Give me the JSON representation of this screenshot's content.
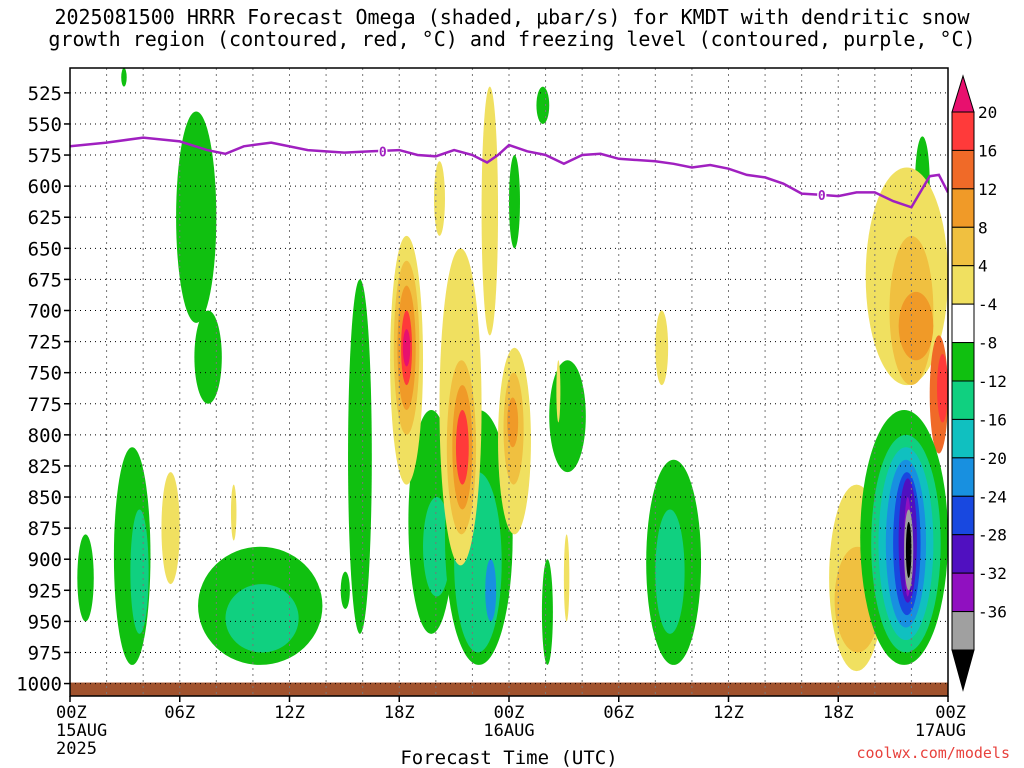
{
  "title": {
    "line1": "2025081500 HRRR Forecast Omega (shaded, μbar/s) for KMDT with dendritic snow",
    "line2": "growth region (contoured, red, °C) and freezing level (contoured, purple, °C)"
  },
  "credit": "coolwx.com/models",
  "chart_data": {
    "type": "heatmap",
    "xlabel": "Forecast Time (UTC)",
    "ylabel": "",
    "y_ticks": [
      525,
      550,
      575,
      600,
      625,
      650,
      675,
      700,
      725,
      750,
      775,
      800,
      825,
      850,
      875,
      900,
      925,
      950,
      975,
      1000
    ],
    "ylim": [
      1010,
      505
    ],
    "xlim": [
      0,
      48
    ],
    "x_ticks": [
      {
        "h": 0,
        "label": "00Z",
        "sub": "15AUG",
        "sub2": "2025"
      },
      {
        "h": 6,
        "label": "06Z",
        "sub": "",
        "sub2": ""
      },
      {
        "h": 12,
        "label": "12Z",
        "sub": "",
        "sub2": ""
      },
      {
        "h": 18,
        "label": "18Z",
        "sub": "",
        "sub2": ""
      },
      {
        "h": 24,
        "label": "00Z",
        "sub": "16AUG",
        "sub2": ""
      },
      {
        "h": 30,
        "label": "06Z",
        "sub": "",
        "sub2": ""
      },
      {
        "h": 36,
        "label": "12Z",
        "sub": "",
        "sub2": ""
      },
      {
        "h": 42,
        "label": "18Z",
        "sub": "",
        "sub2": ""
      },
      {
        "h": 48,
        "label": "00Z",
        "sub": "17AUG",
        "sub2": ""
      }
    ],
    "grid": true,
    "colorbar": {
      "labels": [
        "20",
        "16",
        "12",
        "8",
        "4",
        "-4",
        "-8",
        "-12",
        "-16",
        "-20",
        "-24",
        "-28",
        "-32",
        "-36"
      ],
      "colors": [
        "#e8106e",
        "#ff3a3a",
        "#f06a28",
        "#f09a28",
        "#f0c040",
        "#f0e060",
        "#ffffff",
        "#10c010",
        "#10d080",
        "#10c0c0",
        "#1890e0",
        "#1848e0",
        "#5010c0",
        "#9010c0",
        "#a0a0a0",
        "#000000"
      ]
    },
    "freezing_level": {
      "label": "0",
      "color": "#a020c0",
      "points": [
        [
          0,
          568
        ],
        [
          2,
          565
        ],
        [
          4,
          561
        ],
        [
          6,
          564
        ],
        [
          7.5,
          571
        ],
        [
          8.5,
          574
        ],
        [
          9.5,
          568
        ],
        [
          11,
          565
        ],
        [
          13,
          571
        ],
        [
          15,
          573
        ],
        [
          16.5,
          572
        ],
        [
          18,
          571
        ],
        [
          19,
          575
        ],
        [
          20,
          576
        ],
        [
          21,
          571
        ],
        [
          22,
          575
        ],
        [
          22.8,
          581
        ],
        [
          23.4,
          575
        ],
        [
          24,
          567
        ],
        [
          25,
          572
        ],
        [
          26,
          575
        ],
        [
          27,
          582
        ],
        [
          28,
          575
        ],
        [
          29,
          574
        ],
        [
          30,
          578
        ],
        [
          32,
          580
        ],
        [
          33,
          582
        ],
        [
          34,
          585
        ],
        [
          35,
          583
        ],
        [
          36,
          586
        ],
        [
          37,
          591
        ],
        [
          38,
          593
        ],
        [
          39,
          598
        ],
        [
          40,
          606
        ],
        [
          41,
          607
        ],
        [
          42,
          608
        ],
        [
          43,
          605
        ],
        [
          44,
          605
        ],
        [
          45,
          612
        ],
        [
          46,
          617
        ],
        [
          47,
          592
        ],
        [
          47.5,
          591
        ],
        [
          48,
          605
        ]
      ]
    },
    "ground": {
      "color": "#a0522d",
      "top_hpa": 1000
    },
    "shaded_regions": [
      {
        "level": "-8",
        "color": "#10c010",
        "x": [
          5.8,
          8
        ],
        "y": [
          540,
          710
        ]
      },
      {
        "level": "-8",
        "color": "#10c010",
        "x": [
          6.8,
          8.3
        ],
        "y": [
          700,
          775
        ]
      },
      {
        "level": "-8",
        "color": "#10c010",
        "x": [
          2.4,
          4.4
        ],
        "y": [
          810,
          985
        ]
      },
      {
        "level": "-12",
        "color": "#10d080",
        "x": [
          3.3,
          4.3
        ],
        "y": [
          860,
          960
        ]
      },
      {
        "level": "-8",
        "color": "#10c010",
        "x": [
          0.4,
          1.3
        ],
        "y": [
          880,
          950
        ]
      },
      {
        "level": "-8",
        "color": "#10c010",
        "x": [
          7,
          13.8
        ],
        "y": [
          890,
          985
        ]
      },
      {
        "level": "-12",
        "color": "#10d080",
        "x": [
          8.5,
          12.5
        ],
        "y": [
          920,
          975
        ]
      },
      {
        "level": "-8",
        "color": "#10c010",
        "x": [
          15.2,
          16.5
        ],
        "y": [
          675,
          960
        ]
      },
      {
        "level": "-8",
        "color": "#10c010",
        "x": [
          18.5,
          21
        ],
        "y": [
          780,
          960
        ]
      },
      {
        "level": "-12",
        "color": "#10d080",
        "x": [
          19.3,
          20.8
        ],
        "y": [
          850,
          930
        ]
      },
      {
        "level": "-8",
        "color": "#10c010",
        "x": [
          20.5,
          24.2
        ],
        "y": [
          780,
          985
        ]
      },
      {
        "level": "-12",
        "color": "#10d080",
        "x": [
          21,
          23.6
        ],
        "y": [
          830,
          975
        ]
      },
      {
        "level": "-16",
        "color": "#1890e0",
        "x": [
          22.7,
          23.3
        ],
        "y": [
          900,
          950
        ]
      },
      {
        "level": "-8",
        "color": "#10c010",
        "x": [
          24,
          24.6
        ],
        "y": [
          575,
          650
        ]
      },
      {
        "level": "-8",
        "color": "#10c010",
        "x": [
          25.5,
          26.2
        ],
        "y": [
          520,
          550
        ]
      },
      {
        "level": "-8",
        "color": "#10c010",
        "x": [
          26.2,
          28.2
        ],
        "y": [
          740,
          830
        ]
      },
      {
        "level": "-8",
        "color": "#10c010",
        "x": [
          25.8,
          26.4
        ],
        "y": [
          900,
          985
        ]
      },
      {
        "level": "-8",
        "color": "#10c010",
        "x": [
          31.5,
          34.5
        ],
        "y": [
          820,
          985
        ]
      },
      {
        "level": "-12",
        "color": "#10d080",
        "x": [
          32,
          33.6
        ],
        "y": [
          860,
          960
        ]
      },
      {
        "level": "-8",
        "color": "#10c010",
        "x": [
          46.2,
          47
        ],
        "y": [
          560,
          635
        ]
      },
      {
        "level": "4",
        "color": "#f0e060",
        "x": [
          41.5,
          44.5
        ],
        "y": [
          840,
          990
        ]
      },
      {
        "level": "4",
        "color": "#f0e060",
        "x": [
          43.5,
          48
        ],
        "y": [
          585,
          760
        ]
      },
      {
        "level": "8",
        "color": "#f0c040",
        "x": [
          44.8,
          47.2
        ],
        "y": [
          640,
          760
        ]
      },
      {
        "level": "8",
        "color": "#f0c040",
        "x": [
          41.8,
          44.3
        ],
        "y": [
          890,
          975
        ]
      },
      {
        "level": "12",
        "color": "#f09a28",
        "x": [
          45.3,
          47.2
        ],
        "y": [
          685,
          740
        ]
      },
      {
        "level": "16",
        "color": "#f06a28",
        "x": [
          47,
          48
        ],
        "y": [
          720,
          815
        ]
      },
      {
        "level": "20",
        "color": "#ff3a3a",
        "x": [
          47.4,
          48
        ],
        "y": [
          735,
          790
        ]
      },
      {
        "level": "-8",
        "color": "#10c010",
        "x": [
          43.2,
          48
        ],
        "y": [
          780,
          985
        ]
      },
      {
        "level": "-12",
        "color": "#10d080",
        "x": [
          43.8,
          47.6
        ],
        "y": [
          800,
          975
        ]
      },
      {
        "level": "-16",
        "color": "#10c0c0",
        "x": [
          44.2,
          47.2
        ],
        "y": [
          810,
          965
        ]
      },
      {
        "level": "-20",
        "color": "#1890e0",
        "x": [
          44.6,
          46.8
        ],
        "y": [
          820,
          955
        ]
      },
      {
        "level": "-24",
        "color": "#1848e0",
        "x": [
          45,
          46.5
        ],
        "y": [
          830,
          945
        ]
      },
      {
        "level": "-28",
        "color": "#5010c0",
        "x": [
          45.3,
          46.3
        ],
        "y": [
          835,
          935
        ]
      },
      {
        "level": "-32",
        "color": "#9010c0",
        "x": [
          45.6,
          46
        ],
        "y": [
          850,
          930
        ]
      },
      {
        "level": "-36",
        "color": "#a0a0a0",
        "x": [
          45.6,
          46.1
        ],
        "y": [
          860,
          925
        ]
      },
      {
        "level": "<-36",
        "color": "#000000",
        "x": [
          45.7,
          46
        ],
        "y": [
          870,
          915
        ]
      },
      {
        "level": "4",
        "color": "#f0e060",
        "x": [
          17.5,
          19.3
        ],
        "y": [
          640,
          840
        ]
      },
      {
        "level": "8",
        "color": "#f0c040",
        "x": [
          17.7,
          19.1
        ],
        "y": [
          660,
          800
        ]
      },
      {
        "level": "12",
        "color": "#f09a28",
        "x": [
          17.9,
          18.9
        ],
        "y": [
          680,
          780
        ]
      },
      {
        "level": "16",
        "color": "#ff3a3a",
        "x": [
          18.1,
          18.7
        ],
        "y": [
          700,
          760
        ]
      },
      {
        "level": "20",
        "color": "#e8106e",
        "x": [
          18.2,
          18.6
        ],
        "y": [
          715,
          745
        ]
      },
      {
        "level": "4",
        "color": "#f0e060",
        "x": [
          20.2,
          22.5
        ],
        "y": [
          650,
          905
        ]
      },
      {
        "level": "8",
        "color": "#f0c040",
        "x": [
          20.6,
          22.2
        ],
        "y": [
          740,
          880
        ]
      },
      {
        "level": "12",
        "color": "#f09a28",
        "x": [
          20.9,
          22
        ],
        "y": [
          760,
          860
        ]
      },
      {
        "level": "16",
        "color": "#ff3a3a",
        "x": [
          21.1,
          21.8
        ],
        "y": [
          780,
          840
        ]
      },
      {
        "level": "4",
        "color": "#f0e060",
        "x": [
          22.5,
          23.4
        ],
        "y": [
          520,
          720
        ]
      },
      {
        "level": "4",
        "color": "#f0e060",
        "x": [
          19.9,
          20.5
        ],
        "y": [
          580,
          640
        ]
      },
      {
        "level": "4",
        "color": "#f0e060",
        "x": [
          23.4,
          25.2
        ],
        "y": [
          730,
          880
        ]
      },
      {
        "level": "8",
        "color": "#f0c040",
        "x": [
          23.7,
          24.8
        ],
        "y": [
          750,
          840
        ]
      },
      {
        "level": "12",
        "color": "#f09a28",
        "x": [
          23.9,
          24.5
        ],
        "y": [
          770,
          810
        ]
      },
      {
        "level": "4",
        "color": "#f0e060",
        "x": [
          5,
          6
        ],
        "y": [
          830,
          920
        ]
      },
      {
        "level": "4",
        "color": "#f0e060",
        "x": [
          8.8,
          9.1
        ],
        "y": [
          840,
          885
        ]
      },
      {
        "level": "4",
        "color": "#f0e060",
        "x": [
          32,
          32.7
        ],
        "y": [
          700,
          760
        ]
      },
      {
        "level": "4",
        "color": "#f0e060",
        "x": [
          26.6,
          26.8
        ],
        "y": [
          740,
          790
        ]
      },
      {
        "level": "4",
        "color": "#f0e060",
        "x": [
          27,
          27.3
        ],
        "y": [
          880,
          950
        ]
      },
      {
        "level": "-8",
        "color": "#10c010",
        "x": [
          14.8,
          15.3
        ],
        "y": [
          910,
          940
        ]
      },
      {
        "level": "-8",
        "color": "#10c010",
        "x": [
          2.8,
          3.1
        ],
        "y": [
          505,
          520
        ]
      }
    ]
  }
}
